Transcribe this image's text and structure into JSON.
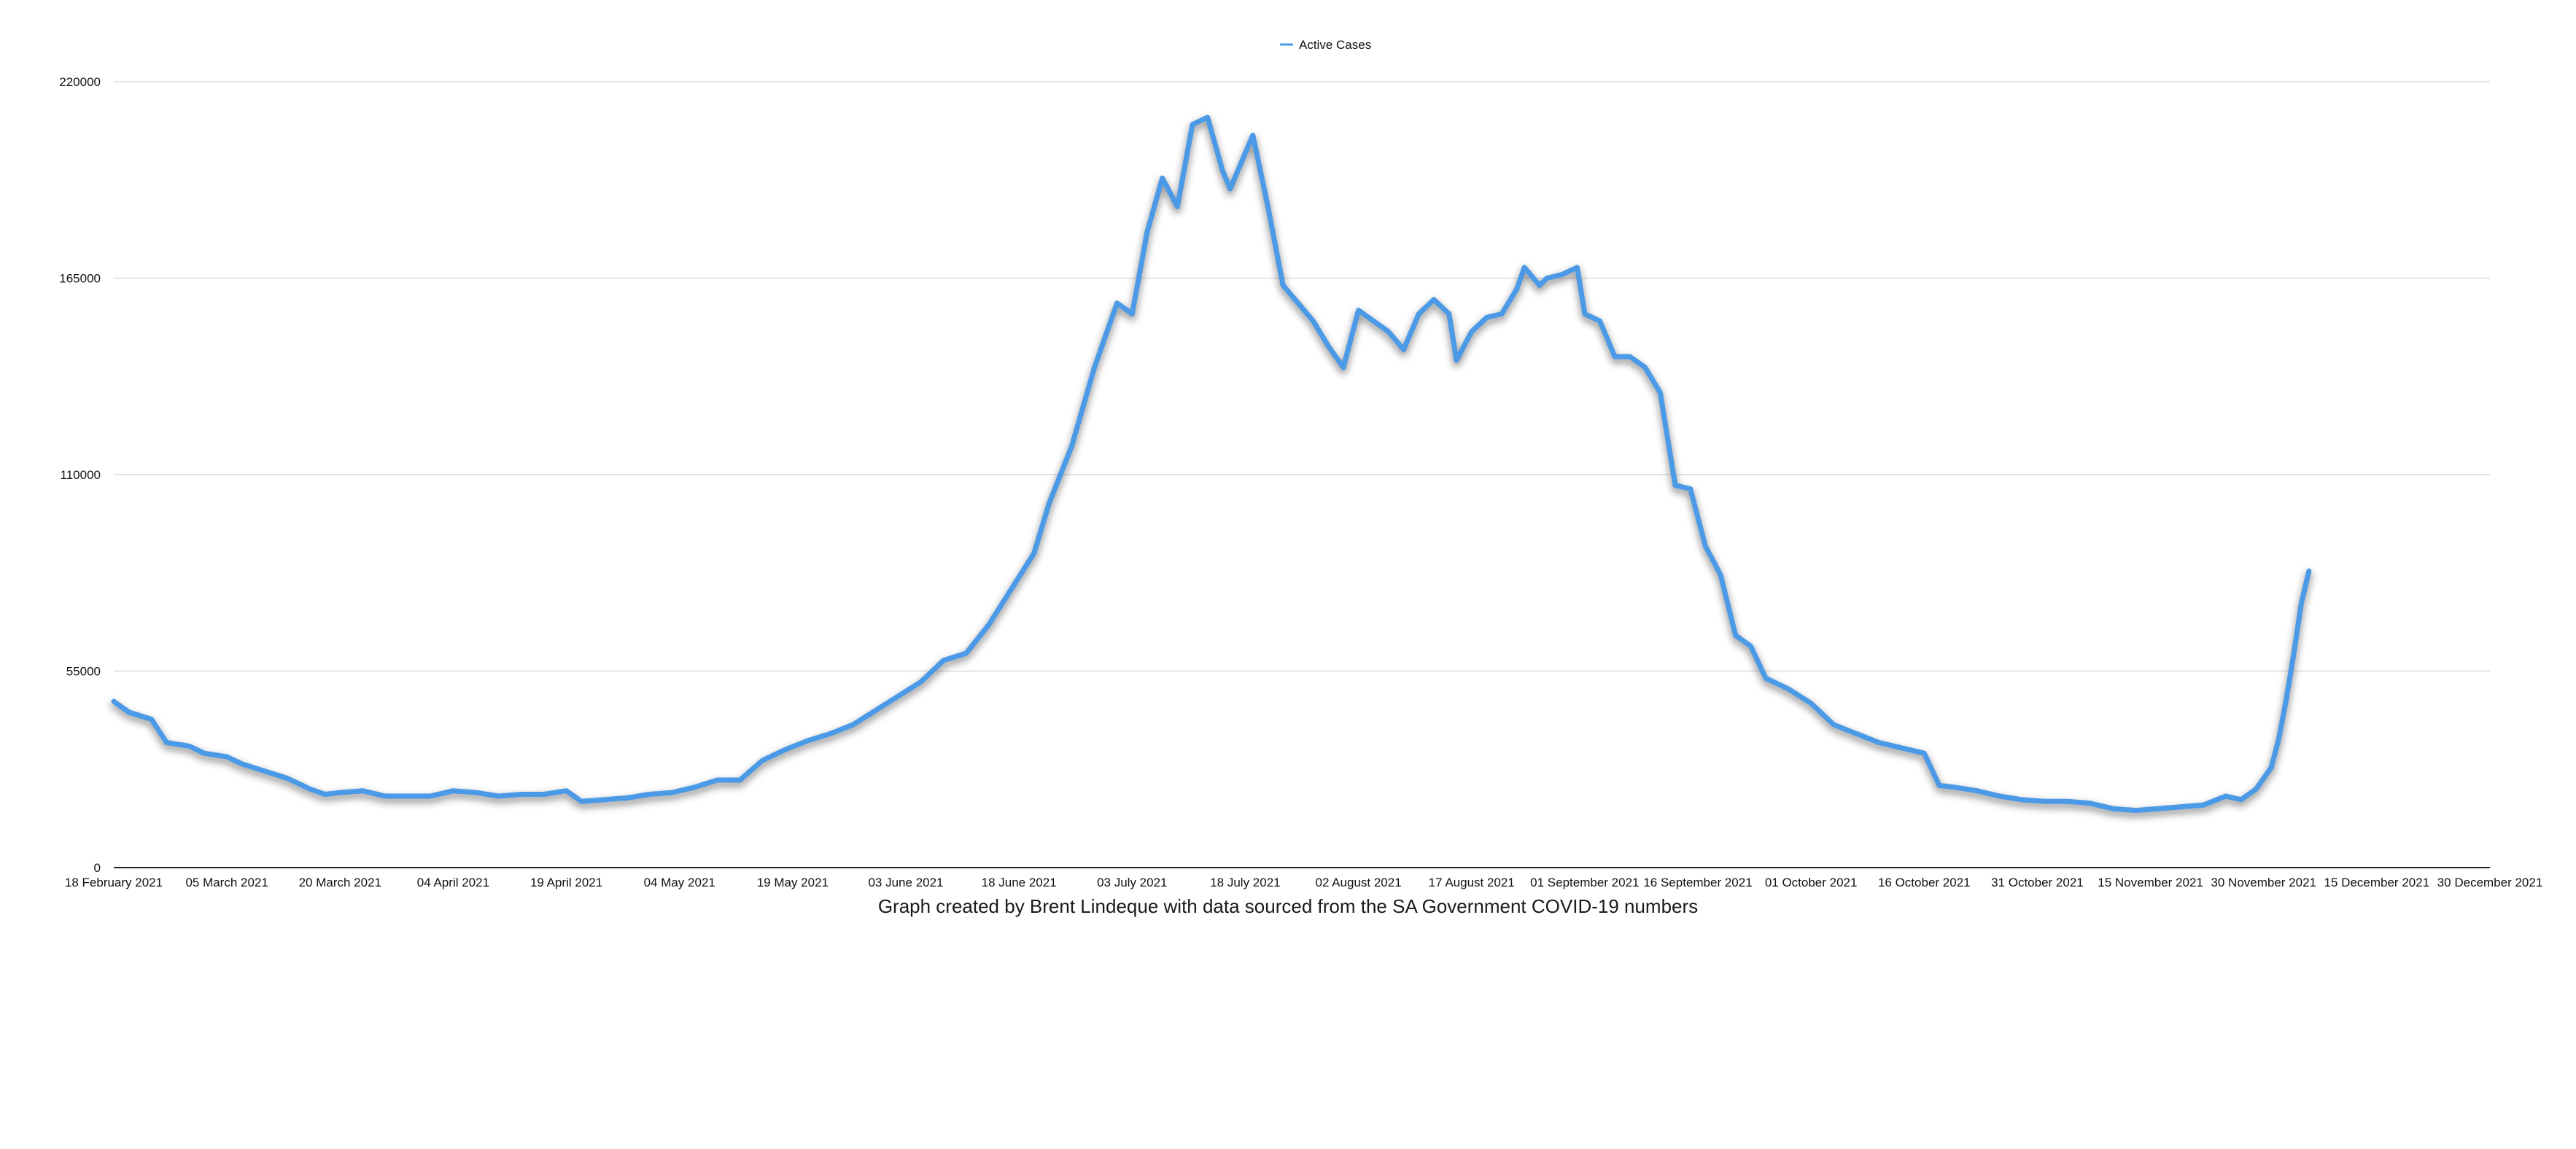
{
  "chart_data": {
    "type": "line",
    "legend": {
      "position": "top-center",
      "entries": [
        "Active Cases"
      ]
    },
    "series": [
      {
        "name": "Active Cases",
        "color": "#4a9ae8",
        "points": [
          [
            "2021-02-18",
            46500
          ],
          [
            "2021-02-20",
            43500
          ],
          [
            "2021-02-23",
            41500
          ],
          [
            "2021-02-25",
            35000
          ],
          [
            "2021-02-28",
            34000
          ],
          [
            "2021-03-02",
            32000
          ],
          [
            "2021-03-05",
            31000
          ],
          [
            "2021-03-07",
            29000
          ],
          [
            "2021-03-10",
            27000
          ],
          [
            "2021-03-13",
            25000
          ],
          [
            "2021-03-16",
            22000
          ],
          [
            "2021-03-18",
            20500
          ],
          [
            "2021-03-20",
            21000
          ],
          [
            "2021-03-23",
            21500
          ],
          [
            "2021-03-26",
            20000
          ],
          [
            "2021-03-29",
            20000
          ],
          [
            "2021-04-01",
            20000
          ],
          [
            "2021-04-04",
            21500
          ],
          [
            "2021-04-07",
            21000
          ],
          [
            "2021-04-10",
            20000
          ],
          [
            "2021-04-13",
            20500
          ],
          [
            "2021-04-16",
            20500
          ],
          [
            "2021-04-19",
            21500
          ],
          [
            "2021-04-21",
            18500
          ],
          [
            "2021-04-24",
            19000
          ],
          [
            "2021-04-27",
            19500
          ],
          [
            "2021-04-30",
            20500
          ],
          [
            "2021-05-03",
            21000
          ],
          [
            "2021-05-06",
            22500
          ],
          [
            "2021-05-09",
            24500
          ],
          [
            "2021-05-12",
            24500
          ],
          [
            "2021-05-15",
            30000
          ],
          [
            "2021-05-18",
            33000
          ],
          [
            "2021-05-21",
            35500
          ],
          [
            "2021-05-24",
            37500
          ],
          [
            "2021-05-27",
            40000
          ],
          [
            "2021-05-30",
            44000
          ],
          [
            "2021-06-02",
            48000
          ],
          [
            "2021-06-05",
            52000
          ],
          [
            "2021-06-08",
            58000
          ],
          [
            "2021-06-11",
            60000
          ],
          [
            "2021-06-14",
            68000
          ],
          [
            "2021-06-17",
            78000
          ],
          [
            "2021-06-20",
            88000
          ],
          [
            "2021-06-22",
            102000
          ],
          [
            "2021-06-25",
            118000
          ],
          [
            "2021-06-28",
            140000
          ],
          [
            "2021-07-01",
            158000
          ],
          [
            "2021-07-03",
            155000
          ],
          [
            "2021-07-05",
            178000
          ],
          [
            "2021-07-07",
            193000
          ],
          [
            "2021-07-09",
            185000
          ],
          [
            "2021-07-11",
            208000
          ],
          [
            "2021-07-13",
            210000
          ],
          [
            "2021-07-15",
            195000
          ],
          [
            "2021-07-16",
            190000
          ],
          [
            "2021-07-19",
            205000
          ],
          [
            "2021-07-21",
            185000
          ],
          [
            "2021-07-23",
            163000
          ],
          [
            "2021-07-25",
            158000
          ],
          [
            "2021-07-27",
            153000
          ],
          [
            "2021-07-29",
            146000
          ],
          [
            "2021-07-31",
            140000
          ],
          [
            "2021-08-02",
            156000
          ],
          [
            "2021-08-04",
            153000
          ],
          [
            "2021-08-06",
            150000
          ],
          [
            "2021-08-08",
            145000
          ],
          [
            "2021-08-10",
            155000
          ],
          [
            "2021-08-12",
            159000
          ],
          [
            "2021-08-14",
            155000
          ],
          [
            "2021-08-15",
            142000
          ],
          [
            "2021-08-17",
            150000
          ],
          [
            "2021-08-19",
            154000
          ],
          [
            "2021-08-21",
            155000
          ],
          [
            "2021-08-23",
            162000
          ],
          [
            "2021-08-24",
            168000
          ],
          [
            "2021-08-26",
            163000
          ],
          [
            "2021-08-27",
            165000
          ],
          [
            "2021-08-29",
            166000
          ],
          [
            "2021-08-31",
            168000
          ],
          [
            "2021-09-01",
            155000
          ],
          [
            "2021-09-03",
            153000
          ],
          [
            "2021-09-05",
            143000
          ],
          [
            "2021-09-07",
            143000
          ],
          [
            "2021-09-09",
            140000
          ],
          [
            "2021-09-11",
            133000
          ],
          [
            "2021-09-13",
            107000
          ],
          [
            "2021-09-15",
            106000
          ],
          [
            "2021-09-17",
            90000
          ],
          [
            "2021-09-19",
            82000
          ],
          [
            "2021-09-21",
            65000
          ],
          [
            "2021-09-23",
            62000
          ],
          [
            "2021-09-25",
            53000
          ],
          [
            "2021-09-28",
            50000
          ],
          [
            "2021-10-01",
            46000
          ],
          [
            "2021-10-04",
            40000
          ],
          [
            "2021-10-07",
            37500
          ],
          [
            "2021-10-10",
            35000
          ],
          [
            "2021-10-13",
            33500
          ],
          [
            "2021-10-16",
            32000
          ],
          [
            "2021-10-18",
            23000
          ],
          [
            "2021-10-20",
            22500
          ],
          [
            "2021-10-23",
            21500
          ],
          [
            "2021-10-26",
            20000
          ],
          [
            "2021-10-29",
            19000
          ],
          [
            "2021-11-01",
            18500
          ],
          [
            "2021-11-04",
            18500
          ],
          [
            "2021-11-07",
            18000
          ],
          [
            "2021-11-10",
            16500
          ],
          [
            "2021-11-13",
            16000
          ],
          [
            "2021-11-16",
            16500
          ],
          [
            "2021-11-19",
            17000
          ],
          [
            "2021-11-22",
            17500
          ],
          [
            "2021-11-25",
            20000
          ],
          [
            "2021-11-27",
            19000
          ],
          [
            "2021-11-29",
            22000
          ],
          [
            "2021-12-01",
            28000
          ],
          [
            "2021-12-02",
            36000
          ],
          [
            "2021-12-03",
            47000
          ],
          [
            "2021-12-04",
            60000
          ],
          [
            "2021-12-05",
            74000
          ],
          [
            "2021-12-06",
            83000
          ]
        ]
      }
    ],
    "x_axis": {
      "min": "2021-02-18",
      "max": "2021-12-30",
      "tick_labels": [
        "18 February 2021",
        "05 March 2021",
        "20 March 2021",
        "04 April 2021",
        "19 April 2021",
        "04 May 2021",
        "19 May 2021",
        "03 June 2021",
        "18 June 2021",
        "03 July 2021",
        "18 July 2021",
        "02 August 2021",
        "17 August 2021",
        "01 September 2021",
        "16 September 2021",
        "01 October 2021",
        "16 October 2021",
        "31 October 2021",
        "15 November 2021",
        "30 November 2021",
        "15 December 2021",
        "30 December 2021"
      ]
    },
    "y_axis": {
      "min": 0,
      "max": 220000,
      "tick_labels": [
        "0",
        "55000",
        "110000",
        "165000",
        "220000"
      ]
    },
    "grid": {
      "horizontal": true,
      "vertical": false
    },
    "caption": "Graph created by Brent Lindeque with data sourced from the SA Government COVID-19 numbers"
  }
}
